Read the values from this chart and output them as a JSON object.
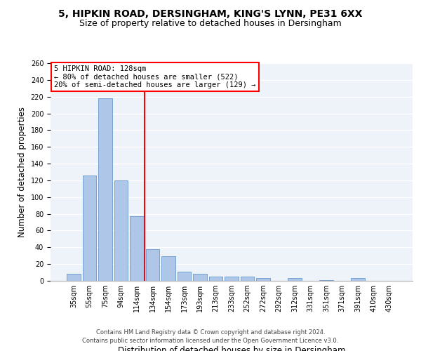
{
  "title1": "5, HIPKIN ROAD, DERSINGHAM, KING'S LYNN, PE31 6XX",
  "title2": "Size of property relative to detached houses in Dersingham",
  "xlabel": "Distribution of detached houses by size in Dersingham",
  "ylabel": "Number of detached properties",
  "footnote1": "Contains HM Land Registry data © Crown copyright and database right 2024.",
  "footnote2": "Contains public sector information licensed under the Open Government Licence v3.0.",
  "annotation_line1": "5 HIPKIN ROAD: 128sqm",
  "annotation_line2": "← 80% of detached houses are smaller (522)",
  "annotation_line3": "20% of semi-detached houses are larger (129) →",
  "bar_color": "#aec6e8",
  "bar_edge_color": "#6699cc",
  "vline_color": "red",
  "categories": [
    "35sqm",
    "55sqm",
    "75sqm",
    "94sqm",
    "114sqm",
    "134sqm",
    "154sqm",
    "173sqm",
    "193sqm",
    "213sqm",
    "233sqm",
    "252sqm",
    "272sqm",
    "292sqm",
    "312sqm",
    "331sqm",
    "351sqm",
    "371sqm",
    "391sqm",
    "410sqm",
    "430sqm"
  ],
  "values": [
    8,
    126,
    218,
    120,
    77,
    38,
    29,
    11,
    8,
    5,
    5,
    5,
    3,
    0,
    3,
    0,
    1,
    0,
    3,
    0,
    0
  ],
  "ylim": [
    0,
    260
  ],
  "yticks": [
    0,
    20,
    40,
    60,
    80,
    100,
    120,
    140,
    160,
    180,
    200,
    220,
    240,
    260
  ],
  "background_color": "#eef2f9",
  "grid_color": "white",
  "title1_fontsize": 10,
  "title2_fontsize": 9,
  "xlabel_fontsize": 8.5,
  "ylabel_fontsize": 8.5,
  "tick_fontsize": 7,
  "annotation_fontsize": 7.5,
  "footnote_fontsize": 6,
  "footnote_color": "#444444"
}
